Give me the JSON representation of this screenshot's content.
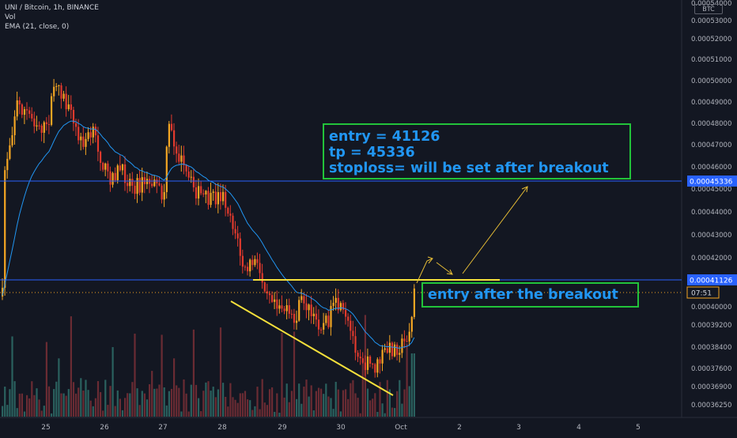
{
  "legend": {
    "line1": "UNI / Bitcoin, 1h, BINANCE",
    "line2": "Vol",
    "line3": "EMA (21, close, 0)"
  },
  "currency_badge": "BTC",
  "note_box_1": {
    "line1": "entry = 41126",
    "line2": "tp = 45336",
    "line3": "stoploss= will be set after breakout"
  },
  "note_box_2": {
    "text": "entry after the breakout"
  },
  "price_axis": {
    "ticks": [
      "0.00054000",
      "0.00053000",
      "0.00052000",
      "0.00051000",
      "0.00050000",
      "0.00049000",
      "0.00048000",
      "0.00047000",
      "0.00046000",
      "0.00045000",
      "0.00044000",
      "0.00043000",
      "0.00042000",
      "0.00041000",
      "0.00040000",
      "0.00039200",
      "0.00038400",
      "0.00037600",
      "0.00036900",
      "0.00036250"
    ],
    "tp_label": "0.00045336",
    "entry_label": "0.00041126",
    "countdown_label": "07:51"
  },
  "time_axis": {
    "labels": [
      "25",
      "26",
      "27",
      "28",
      "29",
      "30",
      "Oct",
      "2",
      "3",
      "4",
      "5"
    ]
  },
  "colors": {
    "background": "#131722",
    "up": "#f5a623",
    "down": "#e23a2d",
    "ema": "#2196f3",
    "hline": "#2962ff",
    "annotation": "#f5e03b",
    "arrow": "#e5bc36",
    "box_border": "#22c33a",
    "box_text": "#2196f3"
  },
  "chart_data": {
    "type": "candlestick",
    "symbol": "UNI / Bitcoin",
    "interval": "1h",
    "exchange": "BINANCE",
    "indicators": [
      "Vol",
      "EMA (21, close, 0)"
    ],
    "x_labels": [
      "25",
      "26",
      "27",
      "28",
      "29",
      "30",
      "Oct",
      "2",
      "3",
      "4",
      "5"
    ],
    "horizontal_lines": [
      {
        "price": 0.00045336,
        "label": "0.00045336"
      },
      {
        "price": 0.00041126,
        "label": "0.00041126"
      }
    ],
    "approximate_close_path": [
      [
        24.6,
        0.000466
      ],
      [
        24.9,
        0.00049
      ],
      [
        25.15,
        0.000483
      ],
      [
        25.5,
        0.00047
      ],
      [
        25.8,
        0.00046
      ],
      [
        26.1,
        0.00045
      ],
      [
        26.4,
        0.000448
      ],
      [
        26.7,
        0.000446
      ],
      [
        27.0,
        0.000475
      ],
      [
        27.2,
        0.000458
      ],
      [
        27.5,
        0.000447
      ],
      [
        27.8,
        0.000445
      ],
      [
        28.1,
        0.000428
      ],
      [
        28.3,
        0.000412
      ],
      [
        28.5,
        0.000405
      ],
      [
        28.8,
        0.000396
      ],
      [
        29.0,
        0.000398
      ],
      [
        29.3,
        0.000395
      ],
      [
        29.6,
        0.000392
      ],
      [
        29.9,
        0.000394
      ],
      [
        30.1,
        0.000386
      ],
      [
        30.4,
        0.000376
      ],
      [
        30.6,
        0.000381
      ],
      [
        30.85,
        0.000385
      ],
      [
        30.95,
        0.00041
      ]
    ],
    "last_price": 0.000408
  }
}
